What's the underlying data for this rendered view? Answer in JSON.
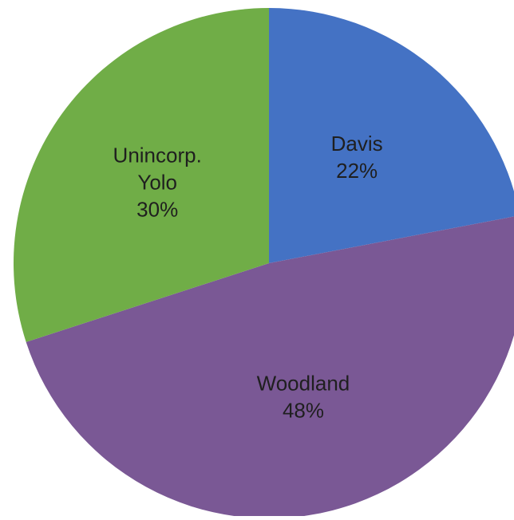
{
  "chart_data": {
    "type": "pie",
    "title": "",
    "slices": [
      {
        "label": "Davis",
        "value": 22,
        "value_label": "22%",
        "color": "#4472c4"
      },
      {
        "label": "Woodland",
        "value": 48,
        "value_label": "48%",
        "color": "#7a5895"
      },
      {
        "label": "Unincorp. Yolo",
        "value": 30,
        "value_label": "30%",
        "color": "#70ad47"
      }
    ],
    "start_angle": "12 o'clock",
    "direction": "clockwise",
    "legend": "none"
  }
}
